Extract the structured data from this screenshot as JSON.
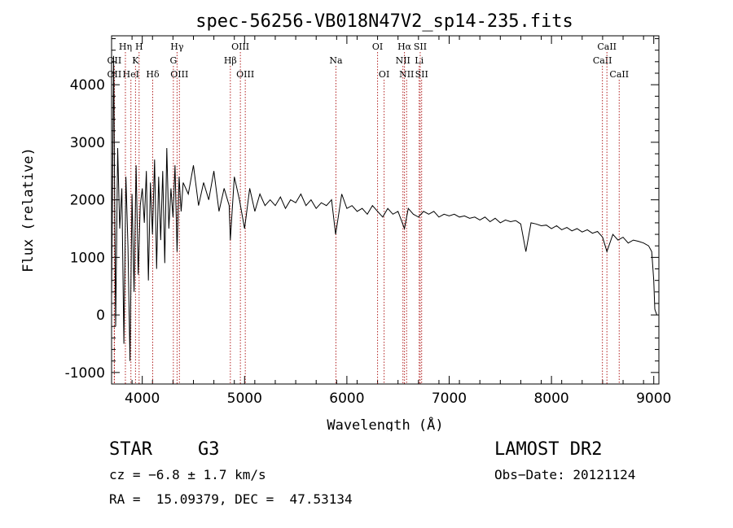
{
  "chart_data": {
    "type": "line",
    "title": "spec-56256-VB018N47V2_sp14-235.fits",
    "xlabel": "Wavelength (Å)",
    "ylabel": "Flux (relative)",
    "xlim": [
      3700,
      9050
    ],
    "ylim": [
      -1200,
      4850
    ],
    "xticks": [
      4000,
      5000,
      6000,
      7000,
      8000,
      9000
    ],
    "yticks": [
      -1000,
      0,
      1000,
      2000,
      3000,
      4000
    ],
    "grid": false,
    "spectrum_color": "#000000",
    "line_color": "#b22222",
    "series": [
      {
        "x": [
          3700,
          3720,
          3740,
          3760,
          3780,
          3800,
          3820,
          3840,
          3860,
          3880,
          3900,
          3920,
          3940,
          3960,
          3980,
          4000,
          4020,
          4040,
          4060,
          4080,
          4100,
          4120,
          4140,
          4160,
          4180,
          4200,
          4220,
          4240,
          4260,
          4280,
          4300,
          4320,
          4340,
          4360,
          4380,
          4400,
          4450,
          4500,
          4550,
          4600,
          4650,
          4700,
          4750,
          4800,
          4850,
          4861,
          4900,
          4950,
          5000,
          5050,
          5100,
          5150,
          5200,
          5250,
          5300,
          5350,
          5400,
          5450,
          5500,
          5550,
          5600,
          5650,
          5700,
          5750,
          5800,
          5850,
          5890,
          5950,
          6000,
          6050,
          6100,
          6150,
          6200,
          6250,
          6300,
          6350,
          6400,
          6450,
          6500,
          6563,
          6600,
          6650,
          6700,
          6750,
          6800,
          6850,
          6900,
          6950,
          7000,
          7050,
          7100,
          7150,
          7200,
          7250,
          7300,
          7350,
          7400,
          7450,
          7500,
          7550,
          7600,
          7650,
          7700,
          7750,
          7800,
          7850,
          7900,
          7950,
          8000,
          8050,
          8100,
          8150,
          8200,
          8250,
          8300,
          8350,
          8400,
          8450,
          8500,
          8542,
          8600,
          8650,
          8700,
          8750,
          8800,
          8850,
          8900,
          8950,
          8980,
          9000,
          9010,
          9020,
          9030
        ],
        "y": [
          300,
          4500,
          -200,
          2900,
          1500,
          2200,
          -500,
          2400,
          1200,
          -800,
          2100,
          400,
          2600,
          700,
          1900,
          2200,
          1600,
          2500,
          600,
          2300,
          1400,
          2700,
          800,
          2400,
          1300,
          2500,
          900,
          2900,
          1500,
          2200,
          1700,
          2600,
          1100,
          2400,
          1800,
          2300,
          2100,
          2600,
          1900,
          2300,
          2000,
          2500,
          1800,
          2200,
          1900,
          1300,
          2400,
          2000,
          1500,
          2200,
          1800,
          2100,
          1900,
          2000,
          1900,
          2050,
          1850,
          2000,
          1950,
          2100,
          1900,
          2000,
          1850,
          1950,
          1900,
          2000,
          1400,
          2100,
          1850,
          1900,
          1800,
          1850,
          1750,
          1900,
          1800,
          1700,
          1850,
          1750,
          1800,
          1500,
          1850,
          1750,
          1700,
          1800,
          1750,
          1800,
          1700,
          1750,
          1720,
          1750,
          1700,
          1720,
          1680,
          1700,
          1650,
          1700,
          1620,
          1680,
          1600,
          1650,
          1620,
          1640,
          1580,
          1100,
          1600,
          1580,
          1550,
          1560,
          1500,
          1550,
          1480,
          1520,
          1460,
          1500,
          1440,
          1480,
          1420,
          1450,
          1350,
          1100,
          1400,
          1300,
          1350,
          1250,
          1300,
          1280,
          1250,
          1200,
          1100,
          600,
          100,
          50,
          0
        ]
      }
    ],
    "line_ids": [
      {
        "wl": 3727,
        "label": "OII",
        "row": 2
      },
      {
        "wl": 3727,
        "label": "OII",
        "row": 3
      },
      {
        "wl": 3835,
        "label": "Hη",
        "row": 1
      },
      {
        "wl": 3889,
        "label": "HeI",
        "row": 3
      },
      {
        "wl": 3934,
        "label": "K",
        "row": 2
      },
      {
        "wl": 3969,
        "label": "H",
        "row": 1
      },
      {
        "wl": 4102,
        "label": "Hδ",
        "row": 3
      },
      {
        "wl": 4304,
        "label": "G",
        "row": 2
      },
      {
        "wl": 4340,
        "label": "Hγ",
        "row": 1
      },
      {
        "wl": 4363,
        "label": "OIII",
        "row": 3
      },
      {
        "wl": 4861,
        "label": "Hβ",
        "row": 2
      },
      {
        "wl": 4959,
        "label": "OIII",
        "row": 1
      },
      {
        "wl": 5007,
        "label": "OIII",
        "row": 3
      },
      {
        "wl": 5893,
        "label": "Na",
        "row": 2
      },
      {
        "wl": 6300,
        "label": "OI",
        "row": 1
      },
      {
        "wl": 6364,
        "label": "OI",
        "row": 3
      },
      {
        "wl": 6548,
        "label": "NII",
        "row": 2
      },
      {
        "wl": 6563,
        "label": "Hα",
        "row": 1
      },
      {
        "wl": 6584,
        "label": "NII",
        "row": 3
      },
      {
        "wl": 6707,
        "label": "Li",
        "row": 2
      },
      {
        "wl": 6717,
        "label": "SII",
        "row": 1
      },
      {
        "wl": 6731,
        "label": "SII",
        "row": 3
      },
      {
        "wl": 8498,
        "label": "CaII",
        "row": 2
      },
      {
        "wl": 8542,
        "label": "CaII",
        "row": 1
      },
      {
        "wl": 8662,
        "label": "CaII",
        "row": 3
      }
    ]
  },
  "info": {
    "object_class": "STAR",
    "subclass": "G3",
    "redshift": "cz = −6.8 ± 1.7 km/s",
    "coords": "RA =  15.09379, DEC =  47.53134",
    "survey": "LAMOST DR2",
    "obs_date": "Obs−Date: 20121124"
  }
}
